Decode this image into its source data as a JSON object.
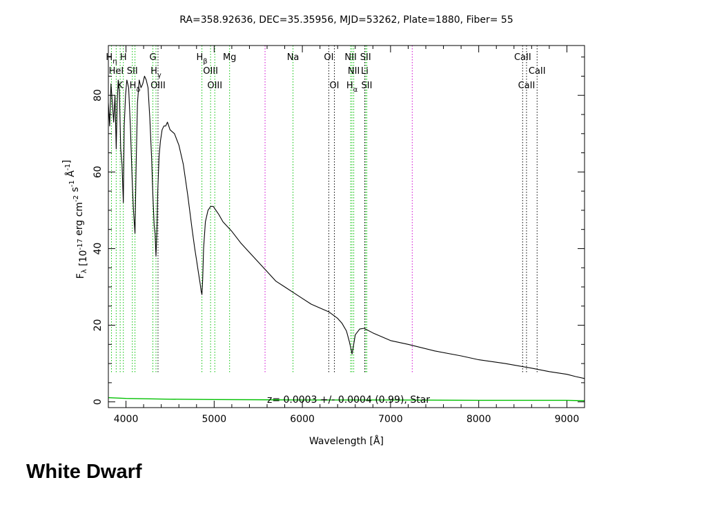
{
  "caption": "White Dwarf",
  "chart_data": {
    "type": "line",
    "title": "RA=358.92636, DEC=35.35956, MJD=53262, Plate=1880, Fiber= 55",
    "xlabel": "Wavelength [Å]",
    "ylabel": "F_λ [10^-17 erg cm^-2 s^-1 Å^-1]",
    "xlim": [
      3800,
      9200
    ],
    "ylim": [
      -1.5,
      93
    ],
    "x_ticks": [
      4000,
      5000,
      6000,
      7000,
      8000,
      9000
    ],
    "y_ticks": [
      0,
      20,
      40,
      60,
      80
    ],
    "annotation": "z= 0.0003 +/- 0.0004 (0.99), Star",
    "grid": false,
    "legend": "none",
    "series": [
      {
        "color": "#000000",
        "x": [
          3800,
          3815,
          3830,
          3845,
          3860,
          3875,
          3889,
          3900,
          3912,
          3925,
          3940,
          3955,
          3970,
          3980,
          3995,
          4010,
          4030,
          4050,
          4070,
          4085,
          4102,
          4115,
          4130,
          4150,
          4170,
          4190,
          4210,
          4230,
          4250,
          4270,
          4290,
          4305,
          4320,
          4330,
          4340,
          4350,
          4360,
          4375,
          4390,
          4410,
          4430,
          4450,
          4470,
          4500,
          4550,
          4600,
          4650,
          4700,
          4750,
          4780,
          4800,
          4820,
          4840,
          4852,
          4861,
          4870,
          4880,
          4900,
          4930,
          4960,
          4990,
          5020,
          5050,
          5100,
          5200,
          5300,
          5400,
          5500,
          5600,
          5700,
          5800,
          5900,
          6000,
          6100,
          6200,
          6300,
          6400,
          6450,
          6500,
          6530,
          6550,
          6563,
          6575,
          6600,
          6650,
          6700,
          6800,
          6900,
          7000,
          7200,
          7500,
          7800,
          8000,
          8300,
          8600,
          8800,
          9000,
          9100,
          9200
        ],
        "y": [
          78,
          72,
          83,
          78,
          73,
          80,
          66,
          78,
          84,
          81,
          66,
          62,
          52,
          72,
          80,
          84,
          82,
          72,
          58,
          50,
          44,
          62,
          78,
          84,
          82,
          83,
          85,
          84,
          82,
          74,
          64,
          54,
          46,
          44,
          38,
          44,
          55,
          64,
          68,
          71,
          72,
          72,
          73,
          71,
          70,
          67,
          62,
          54,
          45,
          40,
          37,
          34,
          31,
          29,
          28,
          32,
          40,
          47,
          50,
          51,
          51,
          50,
          49,
          47,
          44.5,
          41.5,
          39,
          36.5,
          34,
          31.5,
          30,
          28.5,
          27,
          25.5,
          24.5,
          23.5,
          21.8,
          20.5,
          18.5,
          16,
          14,
          12.5,
          14,
          17.5,
          19,
          19.2,
          18,
          17,
          16,
          15,
          13.3,
          12,
          11,
          10,
          8.8,
          7.9,
          7.2,
          6.6,
          6.1
        ]
      },
      {
        "color": "#00c000",
        "x": [
          3800,
          4000,
          4500,
          5000,
          6000,
          7000,
          8000,
          9000,
          9200
        ],
        "y": [
          1.1,
          0.9,
          0.7,
          0.6,
          0.5,
          0.5,
          0.4,
          0.4,
          0.3
        ]
      }
    ],
    "line_labels": [
      {
        "text": "H",
        "sub": "η",
        "x": 3835,
        "row": 1,
        "color": "#00a000"
      },
      {
        "text": "H",
        "sub": "",
        "x": 3970,
        "row": 1,
        "color": "#00a000"
      },
      {
        "text": "HeI",
        "sub": "",
        "x": 3889,
        "row": 2,
        "color": "#00a000"
      },
      {
        "text": "SII",
        "sub": "",
        "x": 4072,
        "row": 2,
        "color": "#00a000"
      },
      {
        "text": "K",
        "sub": "",
        "x": 3934,
        "row": 3,
        "color": "#00a000"
      },
      {
        "text": "H",
        "sub": "δ",
        "x": 4102,
        "row": 3,
        "color": "#00a000"
      },
      {
        "text": "G",
        "sub": "",
        "x": 4305,
        "row": 1,
        "color": "#00a000"
      },
      {
        "text": "H",
        "sub": "γ",
        "x": 4340,
        "row": 2,
        "color": "#00a000"
      },
      {
        "text": "OIII",
        "sub": "",
        "x": 4363,
        "row": 3,
        "color": "#00a000"
      },
      {
        "text": "H",
        "sub": "β",
        "x": 4861,
        "row": 1,
        "color": "#00a000"
      },
      {
        "text": "OIII",
        "sub": "",
        "x": 4959,
        "row": 2,
        "color": "#00a000"
      },
      {
        "text": "OIII",
        "sub": "",
        "x": 5007,
        "row": 3,
        "color": "#00a000"
      },
      {
        "text": "Mg",
        "sub": "",
        "x": 5175,
        "row": 1,
        "color": "#00a000"
      },
      {
        "text": "Na",
        "sub": "",
        "x": 5894,
        "row": 1,
        "color": "#00a000"
      },
      {
        "text": "OI",
        "sub": "",
        "x": 6300,
        "row": 1,
        "color": "#000000"
      },
      {
        "text": "OI",
        "sub": "",
        "x": 6363,
        "row": 3,
        "color": "#000000"
      },
      {
        "text": "NII",
        "sub": "",
        "x": 6548,
        "row": 1,
        "color": "#00a000"
      },
      {
        "text": "SII",
        "sub": "",
        "x": 6717,
        "row": 1,
        "color": "#00a000"
      },
      {
        "text": "NII",
        "sub": "",
        "x": 6583,
        "row": 2,
        "color": "#00a000"
      },
      {
        "text": "Li",
        "sub": "",
        "x": 6707,
        "row": 2,
        "color": "#00a000"
      },
      {
        "text": "H",
        "sub": "α",
        "x": 6563,
        "row": 3,
        "color": "#00a000"
      },
      {
        "text": "SII",
        "sub": "",
        "x": 6731,
        "row": 3,
        "color": "#00a000"
      },
      {
        "text": "CaII",
        "sub": "",
        "x": 8498,
        "row": 1,
        "color": "#000000"
      },
      {
        "text": "CaII",
        "sub": "",
        "x": 8662,
        "row": 2,
        "color": "#000000"
      },
      {
        "text": "CaII",
        "sub": "",
        "x": 8542,
        "row": 3,
        "color": "#000000"
      }
    ],
    "line_markers": [
      {
        "x": 3835,
        "color": "#00c000"
      },
      {
        "x": 3889,
        "color": "#00c000"
      },
      {
        "x": 3934,
        "color": "#00c000"
      },
      {
        "x": 3970,
        "color": "#00c000"
      },
      {
        "x": 4072,
        "color": "#00c000"
      },
      {
        "x": 4102,
        "color": "#00c000"
      },
      {
        "x": 4305,
        "color": "#00c000"
      },
      {
        "x": 4340,
        "color": "#00c000"
      },
      {
        "x": 4363,
        "color": "#000000"
      },
      {
        "x": 4861,
        "color": "#00c000"
      },
      {
        "x": 4959,
        "color": "#00c000"
      },
      {
        "x": 5007,
        "color": "#00c000"
      },
      {
        "x": 5175,
        "color": "#00c000"
      },
      {
        "x": 5577,
        "color": "#d000d0"
      },
      {
        "x": 5894,
        "color": "#00c000"
      },
      {
        "x": 6300,
        "color": "#000000"
      },
      {
        "x": 6363,
        "color": "#000000"
      },
      {
        "x": 6548,
        "color": "#00c000"
      },
      {
        "x": 6563,
        "color": "#00c000"
      },
      {
        "x": 6583,
        "color": "#00c000"
      },
      {
        "x": 6707,
        "color": "#000000"
      },
      {
        "x": 6717,
        "color": "#00c000"
      },
      {
        "x": 6731,
        "color": "#00c000"
      },
      {
        "x": 7246,
        "color": "#d000d0"
      },
      {
        "x": 8498,
        "color": "#000000"
      },
      {
        "x": 8542,
        "color": "#000000"
      },
      {
        "x": 8662,
        "color": "#000000"
      }
    ]
  }
}
